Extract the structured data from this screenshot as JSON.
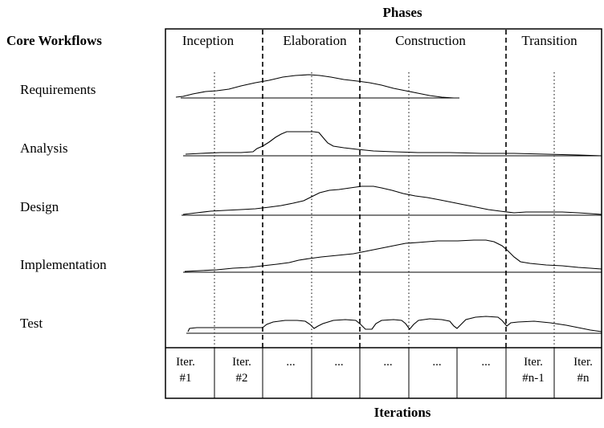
{
  "title_phases": "Phases",
  "title_workflows": "Core Workflows",
  "title_iterations": "Iterations",
  "phases": [
    "Inception",
    "Elaboration",
    "Construction",
    "Transition"
  ],
  "workflows": [
    "Requirements",
    "Analysis",
    "Design",
    "Implementation",
    "Test"
  ],
  "iterations": [
    {
      "line1": "Iter.",
      "line2": "#1"
    },
    {
      "line1": "Iter.",
      "line2": "#2"
    },
    {
      "line1": "...",
      "line2": ""
    },
    {
      "line1": "...",
      "line2": ""
    },
    {
      "line1": "...",
      "line2": ""
    },
    {
      "line1": "...",
      "line2": ""
    },
    {
      "line1": "...",
      "line2": ""
    },
    {
      "line1": "Iter.",
      "line2": "#n-1"
    },
    {
      "line1": "Iter.",
      "line2": "#n"
    }
  ]
}
